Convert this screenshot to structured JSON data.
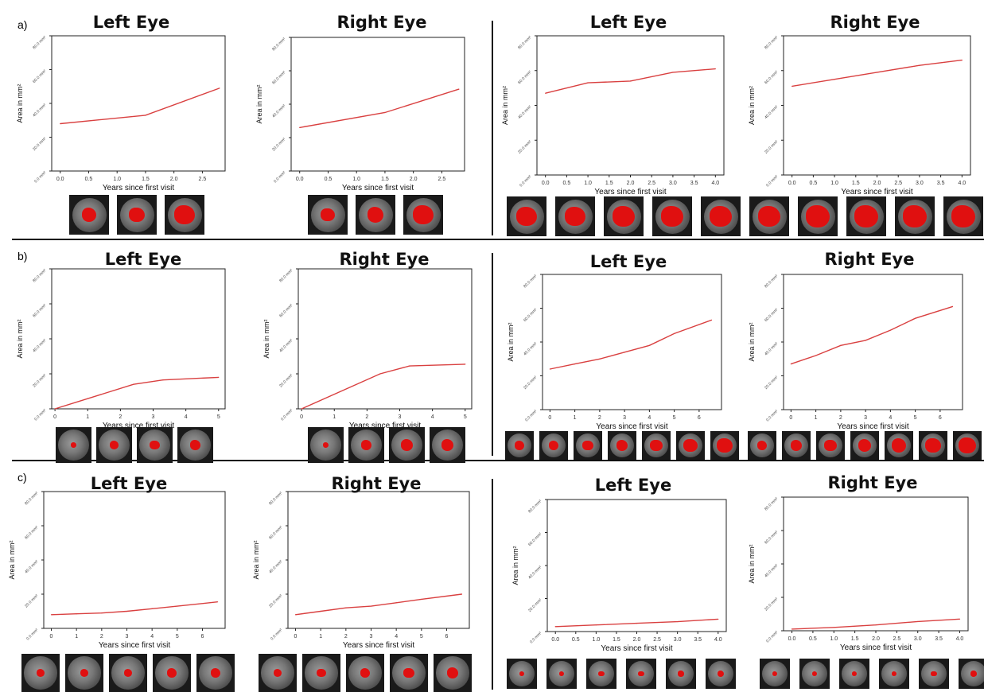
{
  "panel_labels": [
    "a)",
    "b)",
    "c)"
  ],
  "colors": {
    "line": "#d94040",
    "axis": "#222222",
    "lesion": "#e01010"
  },
  "chart_data": [
    {
      "panel": "a)",
      "type": "line",
      "title": "Left Eye",
      "xlabel": "Years since first visit",
      "ylabel": "Area in mm²",
      "xticks": [
        "0.0",
        "0.5",
        "1.0",
        "1.5",
        "2.0",
        "2.5"
      ],
      "xlim": [
        -0.15,
        2.9
      ],
      "yticks": [
        "0.0 mm²",
        "20.0 mm²",
        "40.0 mm²",
        "60.0 mm²",
        "80.0 mm²"
      ],
      "ylim": [
        0,
        80
      ],
      "x": [
        0,
        1.5,
        2.8
      ],
      "y": [
        28,
        33,
        49
      ],
      "thumbnails": 3
    },
    {
      "panel": "a)",
      "type": "line",
      "title": "Right Eye",
      "xlabel": "Years since first visit",
      "ylabel": "Area in mm²",
      "xticks": [
        "0.0",
        "0.5",
        "1.0",
        "1.5",
        "2.0",
        "2.5"
      ],
      "xlim": [
        -0.15,
        2.9
      ],
      "yticks": [
        "0.0 mm²",
        "20.0 mm²",
        "40.0 mm²",
        "60.0 mm²",
        "80.0 mm²"
      ],
      "ylim": [
        0,
        80
      ],
      "x": [
        0,
        1.5,
        2.8
      ],
      "y": [
        26,
        35,
        49
      ],
      "thumbnails": 3
    },
    {
      "panel": "a)",
      "type": "line",
      "title": "Left Eye",
      "xlabel": "Years since first visit",
      "ylabel": "Area in mm²",
      "xticks": [
        "0.0",
        "0.5",
        "1.0",
        "1.5",
        "2.0",
        "2.5",
        "3.0",
        "3.5",
        "4.0"
      ],
      "xlim": [
        -0.2,
        4.2
      ],
      "yticks": [
        "0.0 mm²",
        "20.0 mm²",
        "40.0 mm²",
        "60.0 mm²",
        "80.0 mm²"
      ],
      "ylim": [
        0,
        80
      ],
      "x": [
        0,
        1,
        2,
        3,
        4
      ],
      "y": [
        47,
        53,
        54,
        59,
        61
      ],
      "thumbnails": 10
    },
    {
      "panel": "a)",
      "type": "line",
      "title": "Right Eye",
      "xlabel": "Years since first visit",
      "ylabel": "Area in mm²",
      "xticks": [
        "0.0",
        "0.5",
        "1.0",
        "1.5",
        "2.0",
        "2.5",
        "3.0",
        "3.5",
        "4.0"
      ],
      "xlim": [
        -0.2,
        4.2
      ],
      "yticks": [
        "0.0 mm²",
        "20.0 mm²",
        "40.0 mm²",
        "60.0 mm²",
        "80.0 mm²"
      ],
      "ylim": [
        0,
        80
      ],
      "x": [
        0,
        1,
        2,
        3,
        4
      ],
      "y": [
        51,
        55,
        59,
        63,
        66
      ],
      "thumbnails": 0
    },
    {
      "panel": "b)",
      "type": "line",
      "title": "Left Eye",
      "xlabel": "Years since first visit",
      "ylabel": "Area in mm²",
      "xticks": [
        "0",
        "1",
        "2",
        "3",
        "4",
        "5"
      ],
      "xlim": [
        -0.1,
        5.2
      ],
      "yticks": [
        "0.0 mm²",
        "20.0 mm²",
        "40.0 mm²",
        "60.0 mm²",
        "80.0 mm²"
      ],
      "ylim": [
        0,
        80
      ],
      "x": [
        0,
        2.4,
        3.3,
        5
      ],
      "y": [
        0,
        14,
        16.5,
        18
      ],
      "thumbnails": 4
    },
    {
      "panel": "b)",
      "type": "line",
      "title": "Right Eye",
      "xlabel": "Years since first visit",
      "ylabel": "Area in mm²",
      "xticks": [
        "0",
        "1",
        "2",
        "3",
        "4",
        "5"
      ],
      "xlim": [
        -0.1,
        5.2
      ],
      "yticks": [
        "0.0 mm²",
        "20.0 mm²",
        "40.0 mm²",
        "60.0 mm²",
        "80.0 mm²"
      ],
      "ylim": [
        0,
        80
      ],
      "x": [
        0,
        2.4,
        3.3,
        5
      ],
      "y": [
        0,
        20,
        24.5,
        25.5
      ],
      "thumbnails": 4
    },
    {
      "panel": "b)",
      "type": "line",
      "title": "Left Eye",
      "xlabel": "Years since first visit",
      "ylabel": "Area in mm²",
      "xticks": [
        "0",
        "1",
        "2",
        "3",
        "4",
        "5",
        "6"
      ],
      "xlim": [
        -0.3,
        6.9
      ],
      "yticks": [
        "0.0 mm²",
        "20.0 mm²",
        "40.0 mm²",
        "60.0 mm²",
        "80.0 mm²"
      ],
      "ylim": [
        0,
        80
      ],
      "x": [
        0,
        1,
        2,
        3,
        4,
        5,
        6.5
      ],
      "y": [
        24,
        27,
        30,
        34,
        38,
        45,
        53
      ],
      "thumbnails": 7
    },
    {
      "panel": "b)",
      "type": "line",
      "title": "Right Eye",
      "xlabel": "Years since first visit",
      "ylabel": "Area in mm²",
      "xticks": [
        "0",
        "1",
        "2",
        "3",
        "4",
        "5",
        "6"
      ],
      "xlim": [
        -0.3,
        6.9
      ],
      "yticks": [
        "0.0 mm²",
        "20.0 mm²",
        "40.0 mm²",
        "60.0 mm²",
        "80.0 mm²"
      ],
      "ylim": [
        0,
        80
      ],
      "x": [
        0,
        1,
        2,
        3,
        4,
        5,
        6.5
      ],
      "y": [
        27,
        32,
        38,
        41,
        47,
        54,
        61
      ],
      "thumbnails": 7
    },
    {
      "panel": "c)",
      "type": "line",
      "title": "Left Eye",
      "xlabel": "Years since first visit",
      "ylabel": "Area in mm²",
      "xticks": [
        "0",
        "1",
        "2",
        "3",
        "4",
        "5",
        "6"
      ],
      "xlim": [
        -0.3,
        6.9
      ],
      "yticks": [
        "0.0 mm²",
        "20.0 mm²",
        "40.0 mm²",
        "60.0 mm²",
        "80.0 mm²"
      ],
      "ylim": [
        0,
        80
      ],
      "x": [
        0,
        1,
        2,
        3,
        4,
        5,
        6.6
      ],
      "y": [
        8,
        8.5,
        9,
        10,
        11.5,
        13,
        15.5
      ],
      "thumbnails": 5
    },
    {
      "panel": "c)",
      "type": "line",
      "title": "Right Eye",
      "xlabel": "Years since first visit",
      "ylabel": "Area in mm²",
      "xticks": [
        "0",
        "1",
        "2",
        "3",
        "4",
        "5",
        "6"
      ],
      "xlim": [
        -0.3,
        6.9
      ],
      "yticks": [
        "0.0 mm²",
        "20.0 mm²",
        "40.0 mm²",
        "60.0 mm²",
        "80.0 mm²"
      ],
      "ylim": [
        0,
        80
      ],
      "x": [
        0,
        1,
        2,
        3,
        4,
        5,
        6.6
      ],
      "y": [
        8,
        10,
        12,
        13,
        15,
        17,
        20
      ],
      "thumbnails": 5
    },
    {
      "panel": "c)",
      "type": "line",
      "title": "Left Eye",
      "xlabel": "Years since first visit",
      "ylabel": "Area in mm²",
      "xticks": [
        "0.0",
        "0.5",
        "1.0",
        "1.5",
        "2.0",
        "2.5",
        "3.0",
        "3.5",
        "4.0"
      ],
      "xlim": [
        -0.2,
        4.2
      ],
      "yticks": [
        "0.0 mm²",
        "20.0 mm²",
        "40.0 mm²",
        "60.0 mm²",
        "80.0 mm²"
      ],
      "ylim": [
        0,
        80
      ],
      "x": [
        0,
        1,
        2,
        3,
        4
      ],
      "y": [
        3,
        4,
        5,
        6,
        7.5
      ],
      "thumbnails": 6
    },
    {
      "panel": "c)",
      "type": "line",
      "title": "Right Eye",
      "xlabel": "Years since first visit",
      "ylabel": "Area in mm²",
      "xticks": [
        "0.0",
        "0.5",
        "1.0",
        "1.5",
        "2.0",
        "2.5",
        "3.0",
        "3.5",
        "4.0"
      ],
      "xlim": [
        -0.2,
        4.2
      ],
      "yticks": [
        "0.0 mm²",
        "20.0 mm²",
        "40.0 mm²",
        "60.0 mm²",
        "80.0 mm²"
      ],
      "ylim": [
        0,
        80
      ],
      "x": [
        0,
        1,
        2,
        3,
        4
      ],
      "y": [
        1,
        2,
        3.5,
        5.5,
        7
      ],
      "thumbnails": 6
    }
  ]
}
